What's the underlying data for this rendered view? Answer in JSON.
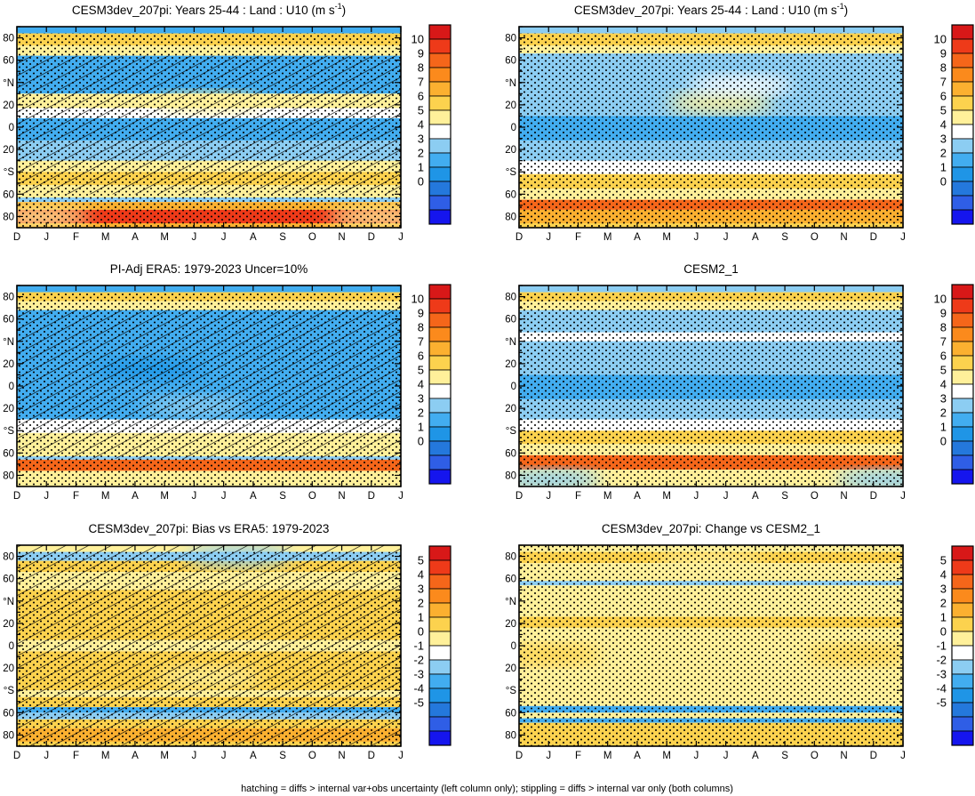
{
  "footer": "hatching = diffs > internal var+obs uncertainty (left column only); stippling = diffs > internal var only (both columns)",
  "chart_data": [
    {
      "type": "heatmap",
      "title": "CESM3dev_207pi: Years 25-44 : Land : U10 (m s",
      "title_sup": "-1",
      "title_end": ")",
      "x": [
        "D",
        "J",
        "F",
        "M",
        "A",
        "M",
        "J",
        "J",
        "A",
        "S",
        "O",
        "N",
        "D",
        "J"
      ],
      "ylabels": [
        "80",
        "60",
        "°N",
        "20",
        "0",
        "20",
        "°S",
        "60",
        "80"
      ],
      "ylim": [
        -90,
        90
      ],
      "colorbar": [
        "10",
        "9",
        "8",
        "7",
        "6",
        "5",
        "4",
        "3",
        "2",
        "1",
        "0"
      ],
      "bands": [
        {
          "y": [
            84,
            90
          ],
          "value": 3.3
        },
        {
          "y": [
            73,
            84
          ],
          "value": 6.0
        },
        {
          "y": [
            64,
            73
          ],
          "value": 5.2
        },
        {
          "y": [
            30,
            64
          ],
          "value": 3.3
        },
        {
          "y": [
            17,
            30
          ],
          "value": 5.0
        },
        {
          "y": [
            8,
            17
          ],
          "value": 4.2
        },
        {
          "y": [
            -12,
            8
          ],
          "value": 2.5
        },
        {
          "y": [
            -30,
            -12
          ],
          "value": 3.5
        },
        {
          "y": [
            -40,
            -30
          ],
          "value": 5.0
        },
        {
          "y": [
            -52,
            -40
          ],
          "value": 6.0
        },
        {
          "y": [
            -63,
            -52
          ],
          "value": 5.0
        },
        {
          "y": [
            -67,
            -63
          ],
          "value": 3.5
        },
        {
          "y": [
            -74,
            -67
          ],
          "value": 7.5
        },
        {
          "y": [
            -86,
            -74
          ],
          "value": 10.0
        },
        {
          "y": [
            -90,
            -86
          ],
          "value": 7.0
        }
      ],
      "patches": [
        {
          "x": 6.5,
          "y": 22,
          "value": 5.0
        },
        {
          "x": 12.3,
          "y": -80,
          "value": 5.5
        },
        {
          "x": 0.7,
          "y": -80,
          "value": 5.5
        }
      ],
      "hatch": [
        [
          -60,
          64
        ]
      ],
      "stipple": [
        [
          -90,
          84
        ]
      ]
    },
    {
      "type": "heatmap",
      "title": "CESM3dev_207pi: Years 25-44 : Land : U10 (m s",
      "title_sup": "-1",
      "title_end": ")",
      "x": [
        "D",
        "J",
        "F",
        "M",
        "A",
        "M",
        "J",
        "J",
        "A",
        "S",
        "O",
        "N",
        "D",
        "J"
      ],
      "ylabels": [
        "80",
        "60",
        "°N",
        "20",
        "0",
        "20",
        "°S",
        "60",
        "80"
      ],
      "ylim": [
        -90,
        90
      ],
      "colorbar": [
        "10",
        "9",
        "8",
        "7",
        "6",
        "5",
        "4",
        "3",
        "2",
        "1",
        "0"
      ],
      "bands": [
        {
          "y": [
            84,
            90
          ],
          "value": 3.5
        },
        {
          "y": [
            73,
            84
          ],
          "value": 6.0
        },
        {
          "y": [
            66,
            73
          ],
          "value": 5.0
        },
        {
          "y": [
            30,
            66
          ],
          "value": 3.4
        },
        {
          "y": [
            10,
            30
          ],
          "value": 4.0
        },
        {
          "y": [
            -12,
            10
          ],
          "value": 2.6
        },
        {
          "y": [
            -30,
            -12
          ],
          "value": 3.6
        },
        {
          "y": [
            -42,
            -30
          ],
          "value": 4.3
        },
        {
          "y": [
            -55,
            -42
          ],
          "value": 6.0
        },
        {
          "y": [
            -65,
            -55
          ],
          "value": 5.0
        },
        {
          "y": [
            -74,
            -65
          ],
          "value": 8.5
        },
        {
          "y": [
            -86,
            -74
          ],
          "value": 7.5
        },
        {
          "y": [
            -90,
            -86
          ],
          "value": 6.0
        }
      ],
      "patches": [
        {
          "x": 6.8,
          "y": 22,
          "value": 5.0
        },
        {
          "x": 7.5,
          "y": 38,
          "value": 4.4
        }
      ],
      "hatch": [],
      "stipple": [
        [
          -90,
          84
        ]
      ]
    },
    {
      "type": "heatmap",
      "title": "PI-Adj ERA5: 1979-2023 Uncer=10%",
      "x": [
        "D",
        "J",
        "F",
        "M",
        "A",
        "M",
        "J",
        "J",
        "A",
        "S",
        "O",
        "N",
        "D",
        "J"
      ],
      "ylabels": [
        "80",
        "60",
        "°N",
        "20",
        "0",
        "20",
        "°S",
        "60",
        "80"
      ],
      "ylim": [
        -90,
        90
      ],
      "colorbar": [
        "10",
        "9",
        "8",
        "7",
        "6",
        "5",
        "4",
        "3",
        "2",
        "1",
        "0"
      ],
      "bands": [
        {
          "y": [
            84,
            90
          ],
          "value": 3.3
        },
        {
          "y": [
            76,
            84
          ],
          "value": 6.0
        },
        {
          "y": [
            68,
            76
          ],
          "value": 5.0
        },
        {
          "y": [
            -30,
            68
          ],
          "value": 3.1
        },
        {
          "y": [
            -42,
            -30
          ],
          "value": 4.2
        },
        {
          "y": [
            -55,
            -42
          ],
          "value": 5.0
        },
        {
          "y": [
            -63,
            -55
          ],
          "value": 5.0
        },
        {
          "y": [
            -66,
            -63
          ],
          "value": 3.5
        },
        {
          "y": [
            -76,
            -66
          ],
          "value": 8.5
        },
        {
          "y": [
            -84,
            -76
          ],
          "value": 5.5
        },
        {
          "y": [
            -90,
            -84
          ],
          "value": 5.0
        }
      ],
      "patches": [
        {
          "x": 4.5,
          "y": 15,
          "value": 2.4
        },
        {
          "x": 6.0,
          "y": -18,
          "value": 3.8
        }
      ],
      "hatch": [
        [
          -65,
          68
        ]
      ],
      "stipple": [
        [
          -90,
          84
        ]
      ]
    },
    {
      "type": "heatmap",
      "title": "CESM2_1",
      "x": [
        "D",
        "J",
        "F",
        "M",
        "A",
        "M",
        "J",
        "J",
        "A",
        "S",
        "O",
        "N",
        "D",
        "J"
      ],
      "ylabels": [
        "80",
        "60",
        "°N",
        "20",
        "0",
        "20",
        "°S",
        "60",
        "80"
      ],
      "ylim": [
        -90,
        90
      ],
      "colorbar": [
        "10",
        "9",
        "8",
        "7",
        "6",
        "5",
        "4",
        "3",
        "2",
        "1",
        "0"
      ],
      "bands": [
        {
          "y": [
            84,
            90
          ],
          "value": 3.5
        },
        {
          "y": [
            76,
            84
          ],
          "value": 6.0
        },
        {
          "y": [
            68,
            76
          ],
          "value": 5.0
        },
        {
          "y": [
            48,
            68
          ],
          "value": 3.5
        },
        {
          "y": [
            40,
            48
          ],
          "value": 4.6
        },
        {
          "y": [
            10,
            40
          ],
          "value": 3.4
        },
        {
          "y": [
            -12,
            10
          ],
          "value": 2.6
        },
        {
          "y": [
            -30,
            -12
          ],
          "value": 3.8
        },
        {
          "y": [
            -40,
            -30
          ],
          "value": 4.5
        },
        {
          "y": [
            -52,
            -40
          ],
          "value": 6.5
        },
        {
          "y": [
            -62,
            -52
          ],
          "value": 5.0
        },
        {
          "y": [
            -75,
            -62
          ],
          "value": 8.5
        },
        {
          "y": [
            -84,
            -75
          ],
          "value": 5.5
        },
        {
          "y": [
            -90,
            -84
          ],
          "value": 5.0
        }
      ],
      "patches": [
        {
          "x": 1.0,
          "y": -84,
          "value": 3.6
        },
        {
          "x": 12.5,
          "y": -84,
          "value": 3.6
        }
      ],
      "hatch": [],
      "stipple": [
        [
          -90,
          84
        ]
      ]
    },
    {
      "type": "heatmap",
      "title": "CESM3dev_207pi: Bias vs ERA5: 1979-2023",
      "x": [
        "D",
        "J",
        "F",
        "M",
        "A",
        "M",
        "J",
        "J",
        "A",
        "S",
        "O",
        "N",
        "D",
        "J"
      ],
      "ylabels": [
        "80",
        "60",
        "°N",
        "20",
        "0",
        "20",
        "°S",
        "60",
        "80"
      ],
      "ylim": [
        -90,
        90
      ],
      "colorbar": [
        "5",
        "4",
        "3",
        "2",
        "1",
        "0",
        "-1",
        "-2",
        "-3",
        "-4",
        "-5"
      ],
      "bands": [
        {
          "y": [
            84,
            90
          ],
          "value": 0.0
        },
        {
          "y": [
            76,
            84
          ],
          "value": -1.0
        },
        {
          "y": [
            66,
            76
          ],
          "value": 1.0
        },
        {
          "y": [
            50,
            66
          ],
          "value": 0.0
        },
        {
          "y": [
            5,
            50
          ],
          "value": 1.4
        },
        {
          "y": [
            -5,
            5
          ],
          "value": 0.0
        },
        {
          "y": [
            -40,
            -5
          ],
          "value": 1.4
        },
        {
          "y": [
            -46,
            -40
          ],
          "value": 0.0
        },
        {
          "y": [
            -55,
            -46
          ],
          "value": 1.0
        },
        {
          "y": [
            -60,
            -55
          ],
          "value": -2.5
        },
        {
          "y": [
            -66,
            -60
          ],
          "value": -1.0
        },
        {
          "y": [
            -74,
            -66
          ],
          "value": 1.3
        },
        {
          "y": [
            -86,
            -74
          ],
          "value": 2.0
        },
        {
          "y": [
            -90,
            -86
          ],
          "value": 1.0
        }
      ],
      "patches": [
        {
          "x": 7.5,
          "y": 80,
          "value": -1.5
        },
        {
          "x": 6.5,
          "y": -28,
          "value": 0.0
        }
      ],
      "hatch": [
        [
          -90,
          90
        ]
      ],
      "stipple": [
        [
          -90,
          84
        ]
      ]
    },
    {
      "type": "heatmap",
      "title": "CESM3dev_207pi: Change vs CESM2_1",
      "x": [
        "D",
        "J",
        "F",
        "M",
        "A",
        "M",
        "J",
        "J",
        "A",
        "S",
        "O",
        "N",
        "D",
        "J"
      ],
      "ylabels": [
        "80",
        "60",
        "°N",
        "20",
        "0",
        "20",
        "°S",
        "60",
        "80"
      ],
      "ylim": [
        -90,
        90
      ],
      "colorbar": [
        "5",
        "4",
        "3",
        "2",
        "1",
        "0",
        "-1",
        "-2",
        "-3",
        "-4",
        "-5"
      ],
      "bands": [
        {
          "y": [
            84,
            90
          ],
          "value": 0.0
        },
        {
          "y": [
            74,
            84
          ],
          "value": 1.0
        },
        {
          "y": [
            58,
            74
          ],
          "value": 0.0
        },
        {
          "y": [
            54,
            58
          ],
          "value": -1.0
        },
        {
          "y": [
            26,
            54
          ],
          "value": 0.0
        },
        {
          "y": [
            16,
            26
          ],
          "value": 1.0
        },
        {
          "y": [
            -54,
            16
          ],
          "value": 0.0
        },
        {
          "y": [
            -60,
            -54
          ],
          "value": -2.5
        },
        {
          "y": [
            -65,
            -60
          ],
          "value": 0.0
        },
        {
          "y": [
            -69,
            -65
          ],
          "value": -2.5
        },
        {
          "y": [
            -80,
            -69
          ],
          "value": 1.4
        },
        {
          "y": [
            -90,
            -80
          ],
          "value": 1.0
        }
      ],
      "patches": [
        {
          "x": 6.5,
          "y": 75,
          "value": 0.0
        },
        {
          "x": 1.0,
          "y": -8,
          "value": 1.0
        },
        {
          "x": 11.5,
          "y": -8,
          "value": 1.0
        }
      ],
      "hatch": [],
      "stipple": [
        [
          -90,
          90
        ]
      ]
    }
  ]
}
